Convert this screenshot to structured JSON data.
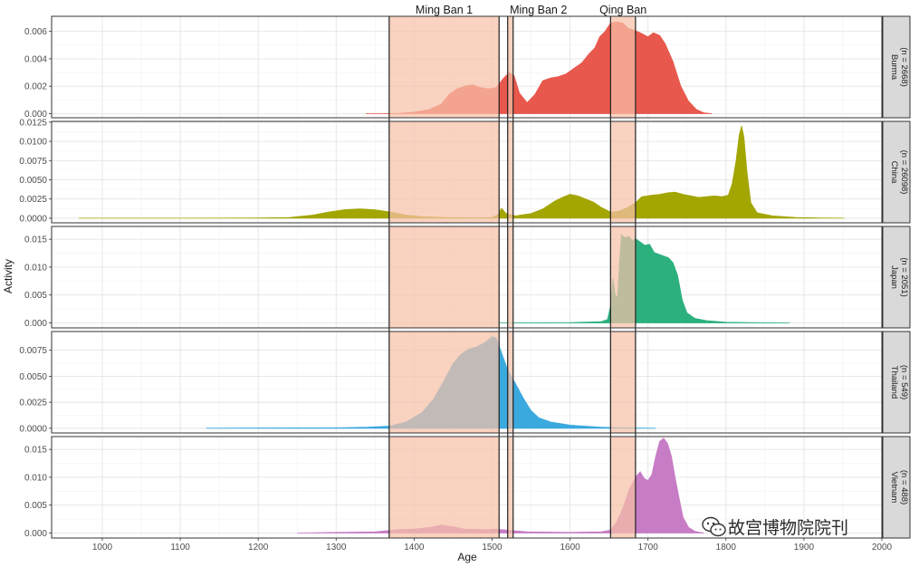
{
  "chart_data": {
    "type": "area",
    "xlabel": "Age",
    "ylabel": "Activity",
    "xlim": [
      935,
      2000
    ],
    "x_ticks": [
      1000,
      1100,
      1200,
      1300,
      1400,
      1500,
      1600,
      1700,
      1800,
      1900,
      2000
    ],
    "grid": true,
    "periods": [
      {
        "name": "Ming Ban 1",
        "start": 1368,
        "end": 1509,
        "color": "#F7C0A8"
      },
      {
        "name": "Ming Ban 2",
        "start": 1520,
        "end": 1527,
        "color": "#F7C0A8"
      },
      {
        "name": "Qing Ban",
        "start": 1652,
        "end": 1684,
        "color": "#F7C0A8"
      }
    ],
    "panels": [
      {
        "name": "Burma",
        "strip_line1": "Burma",
        "strip_line2": "(n = 2668)",
        "color": "#E8584C",
        "ylim": [
          -0.0003,
          0.0071
        ],
        "yticks": [
          0,
          0.002,
          0.004,
          0.006
        ],
        "ytick_labels": [
          "0.000",
          "0.002",
          "0.004",
          "0.006"
        ],
        "points": [
          [
            1338,
            0
          ],
          [
            1360,
            0
          ],
          [
            1380,
            2e-05
          ],
          [
            1400,
            0.0001
          ],
          [
            1420,
            0.0003
          ],
          [
            1435,
            0.0007
          ],
          [
            1445,
            0.0014
          ],
          [
            1455,
            0.0018
          ],
          [
            1465,
            0.002
          ],
          [
            1475,
            0.0021
          ],
          [
            1485,
            0.0019
          ],
          [
            1495,
            0.0018
          ],
          [
            1505,
            0.0019
          ],
          [
            1515,
            0.0026
          ],
          [
            1522,
            0.003
          ],
          [
            1528,
            0.0028
          ],
          [
            1535,
            0.0015
          ],
          [
            1545,
            0.0008
          ],
          [
            1555,
            0.0014
          ],
          [
            1565,
            0.0024
          ],
          [
            1575,
            0.0026
          ],
          [
            1585,
            0.0027
          ],
          [
            1595,
            0.0029
          ],
          [
            1605,
            0.0033
          ],
          [
            1615,
            0.0037
          ],
          [
            1625,
            0.0044
          ],
          [
            1632,
            0.0048
          ],
          [
            1638,
            0.0056
          ],
          [
            1645,
            0.006
          ],
          [
            1652,
            0.0066
          ],
          [
            1660,
            0.0067
          ],
          [
            1668,
            0.0066
          ],
          [
            1675,
            0.0062
          ],
          [
            1682,
            0.0061
          ],
          [
            1690,
            0.0059
          ],
          [
            1700,
            0.0056
          ],
          [
            1707,
            0.0059
          ],
          [
            1715,
            0.0057
          ],
          [
            1722,
            0.0051
          ],
          [
            1732,
            0.0038
          ],
          [
            1742,
            0.002
          ],
          [
            1752,
            0.0009
          ],
          [
            1762,
            0.0003
          ],
          [
            1772,
            5e-05
          ],
          [
            1782,
            0
          ]
        ]
      },
      {
        "name": "China",
        "strip_line1": "China",
        "strip_line2": "(n = 26098)",
        "color": "#A3A500",
        "ylim": [
          -0.0006,
          0.0126
        ],
        "yticks": [
          0,
          0.0025,
          0.005,
          0.0075,
          0.01,
          0.0125
        ],
        "ytick_labels": [
          "0.0000",
          "0.0025",
          "0.0050",
          "0.0075",
          "0.0100",
          "0.0125"
        ],
        "points": [
          [
            970,
            0
          ],
          [
            1100,
            0
          ],
          [
            1200,
            3e-05
          ],
          [
            1240,
            0.0001
          ],
          [
            1270,
            0.0004
          ],
          [
            1290,
            0.0008
          ],
          [
            1310,
            0.0011
          ],
          [
            1330,
            0.0012
          ],
          [
            1350,
            0.0011
          ],
          [
            1370,
            0.0008
          ],
          [
            1390,
            0.0004
          ],
          [
            1410,
            0.0002
          ],
          [
            1440,
            0.0001
          ],
          [
            1480,
            5e-05
          ],
          [
            1500,
            0.0001
          ],
          [
            1508,
            0.0005
          ],
          [
            1512,
            0.0013
          ],
          [
            1518,
            0.0006
          ],
          [
            1530,
            0.0003
          ],
          [
            1550,
            0.0006
          ],
          [
            1565,
            0.0012
          ],
          [
            1580,
            0.0022
          ],
          [
            1590,
            0.0027
          ],
          [
            1600,
            0.0031
          ],
          [
            1610,
            0.0029
          ],
          [
            1620,
            0.0025
          ],
          [
            1630,
            0.0021
          ],
          [
            1640,
            0.0014
          ],
          [
            1652,
            0.0008
          ],
          [
            1662,
            0.0009
          ],
          [
            1672,
            0.0013
          ],
          [
            1684,
            0.002
          ],
          [
            1692,
            0.0028
          ],
          [
            1705,
            0.003
          ],
          [
            1715,
            0.0031
          ],
          [
            1725,
            0.0033
          ],
          [
            1735,
            0.0034
          ],
          [
            1745,
            0.0031
          ],
          [
            1755,
            0.0029
          ],
          [
            1765,
            0.0027
          ],
          [
            1775,
            0.0028
          ],
          [
            1785,
            0.0029
          ],
          [
            1795,
            0.0028
          ],
          [
            1803,
            0.003
          ],
          [
            1808,
            0.0045
          ],
          [
            1813,
            0.0075
          ],
          [
            1817,
            0.0108
          ],
          [
            1820,
            0.012
          ],
          [
            1823,
            0.0106
          ],
          [
            1827,
            0.006
          ],
          [
            1832,
            0.002
          ],
          [
            1840,
            0.0007
          ],
          [
            1860,
            0.0003
          ],
          [
            1890,
            0.0001
          ],
          [
            1920,
            2e-05
          ],
          [
            1952,
            0
          ]
        ]
      },
      {
        "name": "Japan",
        "strip_line1": "Japan",
        "strip_line2": "(n = 2051)",
        "color": "#2BB07E",
        "ylim": [
          -0.0009,
          0.0173
        ],
        "yticks": [
          0,
          0.005,
          0.01,
          0.015
        ],
        "ytick_labels": [
          "0.000",
          "0.005",
          "0.010",
          "0.015"
        ],
        "points": [
          [
            1509,
            0
          ],
          [
            1600,
            5e-05
          ],
          [
            1640,
            0.0002
          ],
          [
            1648,
            0.0006
          ],
          [
            1652,
            0.003
          ],
          [
            1655,
            0.008
          ],
          [
            1658,
            0.005
          ],
          [
            1661,
            0.0045
          ],
          [
            1664,
            0.012
          ],
          [
            1666,
            0.0158
          ],
          [
            1669,
            0.0154
          ],
          [
            1672,
            0.0153
          ],
          [
            1676,
            0.0155
          ],
          [
            1680,
            0.0147
          ],
          [
            1684,
            0.0151
          ],
          [
            1690,
            0.0145
          ],
          [
            1696,
            0.0139
          ],
          [
            1702,
            0.0141
          ],
          [
            1708,
            0.0126
          ],
          [
            1714,
            0.0123
          ],
          [
            1720,
            0.012
          ],
          [
            1726,
            0.0117
          ],
          [
            1732,
            0.0108
          ],
          [
            1738,
            0.0085
          ],
          [
            1744,
            0.004
          ],
          [
            1750,
            0.0018
          ],
          [
            1760,
            0.0008
          ],
          [
            1775,
            0.0004
          ],
          [
            1800,
            0.0001
          ],
          [
            1840,
            3e-05
          ],
          [
            1882,
            0
          ]
        ]
      },
      {
        "name": "Thailand",
        "strip_line1": "Thailand",
        "strip_line2": "(n = 549)",
        "color": "#3AA9DE",
        "ylim": [
          -0.00045,
          0.0093
        ],
        "yticks": [
          0,
          0.0025,
          0.005,
          0.0075
        ],
        "ytick_labels": [
          "0.0000",
          "0.0025",
          "0.0050",
          "0.0075"
        ],
        "points": [
          [
            1133,
            0
          ],
          [
            1200,
            3e-05
          ],
          [
            1300,
            5e-05
          ],
          [
            1340,
            0.0001
          ],
          [
            1368,
            0.0002
          ],
          [
            1390,
            0.0006
          ],
          [
            1410,
            0.0015
          ],
          [
            1425,
            0.0028
          ],
          [
            1440,
            0.0048
          ],
          [
            1450,
            0.0062
          ],
          [
            1460,
            0.0071
          ],
          [
            1470,
            0.0076
          ],
          [
            1480,
            0.0078
          ],
          [
            1490,
            0.0082
          ],
          [
            1500,
            0.0088
          ],
          [
            1505,
            0.0087
          ],
          [
            1510,
            0.0077
          ],
          [
            1520,
            0.0056
          ],
          [
            1530,
            0.0043
          ],
          [
            1540,
            0.0029
          ],
          [
            1550,
            0.0017
          ],
          [
            1560,
            0.001
          ],
          [
            1575,
            0.0006
          ],
          [
            1600,
            0.0003
          ],
          [
            1640,
            0.0001
          ],
          [
            1680,
            3e-05
          ],
          [
            1710,
            0
          ]
        ]
      },
      {
        "name": "Vietnam",
        "strip_line1": "Vietnam",
        "strip_line2": "(n = 488)",
        "color": "#C77CC6",
        "ylim": [
          -0.0009,
          0.0173
        ],
        "yticks": [
          0,
          0.005,
          0.01,
          0.015
        ],
        "ytick_labels": [
          "0.000",
          "0.005",
          "0.010",
          "0.015"
        ],
        "points": [
          [
            1250,
            0
          ],
          [
            1300,
            0.0001
          ],
          [
            1350,
            0.0002
          ],
          [
            1380,
            0.0006
          ],
          [
            1400,
            0.0007
          ],
          [
            1420,
            0.001
          ],
          [
            1435,
            0.0014
          ],
          [
            1450,
            0.0011
          ],
          [
            1465,
            0.0007
          ],
          [
            1490,
            0.0006
          ],
          [
            1505,
            0.0007
          ],
          [
            1520,
            0.0005
          ],
          [
            1545,
            0.0002
          ],
          [
            1600,
            0.0001
          ],
          [
            1640,
            0.0002
          ],
          [
            1652,
            0.0005
          ],
          [
            1660,
            0.002
          ],
          [
            1668,
            0.0045
          ],
          [
            1676,
            0.0078
          ],
          [
            1684,
            0.01
          ],
          [
            1690,
            0.011
          ],
          [
            1695,
            0.0098
          ],
          [
            1700,
            0.0094
          ],
          [
            1705,
            0.0105
          ],
          [
            1710,
            0.0138
          ],
          [
            1715,
            0.0164
          ],
          [
            1720,
            0.017
          ],
          [
            1725,
            0.0161
          ],
          [
            1730,
            0.0138
          ],
          [
            1735,
            0.0098
          ],
          [
            1740,
            0.0062
          ],
          [
            1745,
            0.0028
          ],
          [
            1752,
            0.001
          ],
          [
            1760,
            0.0003
          ],
          [
            1772,
            0
          ]
        ]
      }
    ]
  },
  "watermark": "故宫博物院院刊"
}
